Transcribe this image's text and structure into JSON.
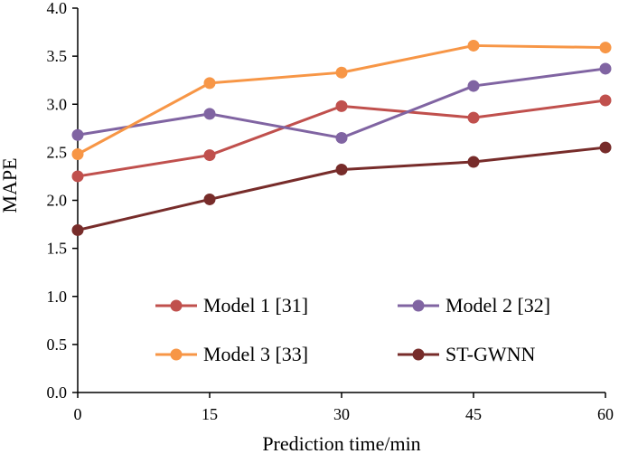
{
  "chart_data": {
    "type": "line",
    "title": "",
    "xlabel": "Prediction time/min",
    "ylabel": "MAPE",
    "x": [
      0,
      15,
      30,
      45,
      60
    ],
    "x_tick_labels": [
      "0",
      "15",
      "30",
      "45",
      "60"
    ],
    "ylim": [
      0,
      4.0
    ],
    "y_ticks": [
      0,
      0.5,
      1.0,
      1.5,
      2.0,
      2.5,
      3.0,
      3.5,
      4.0
    ],
    "y_tick_labels": [
      "0.0",
      "0.5",
      "1.0",
      "1.5",
      "2.0",
      "2.5",
      "3.0",
      "3.5",
      "4.0"
    ],
    "grid": false,
    "legend_position": "bottom",
    "series": [
      {
        "name": "Model 1 [31]",
        "color": "#c0504d",
        "values": [
          2.25,
          2.47,
          2.98,
          2.86,
          3.04
        ]
      },
      {
        "name": "Model 2 [32]",
        "color": "#8064a2",
        "values": [
          2.68,
          2.9,
          2.65,
          3.19,
          3.37
        ]
      },
      {
        "name": "Model 3 [33]",
        "color": "#f79646",
        "values": [
          2.48,
          3.22,
          3.33,
          3.61,
          3.59
        ]
      },
      {
        "name": "ST-GWNN",
        "color": "#772c2a",
        "values": [
          1.69,
          2.01,
          2.32,
          2.4,
          2.55
        ]
      }
    ]
  }
}
